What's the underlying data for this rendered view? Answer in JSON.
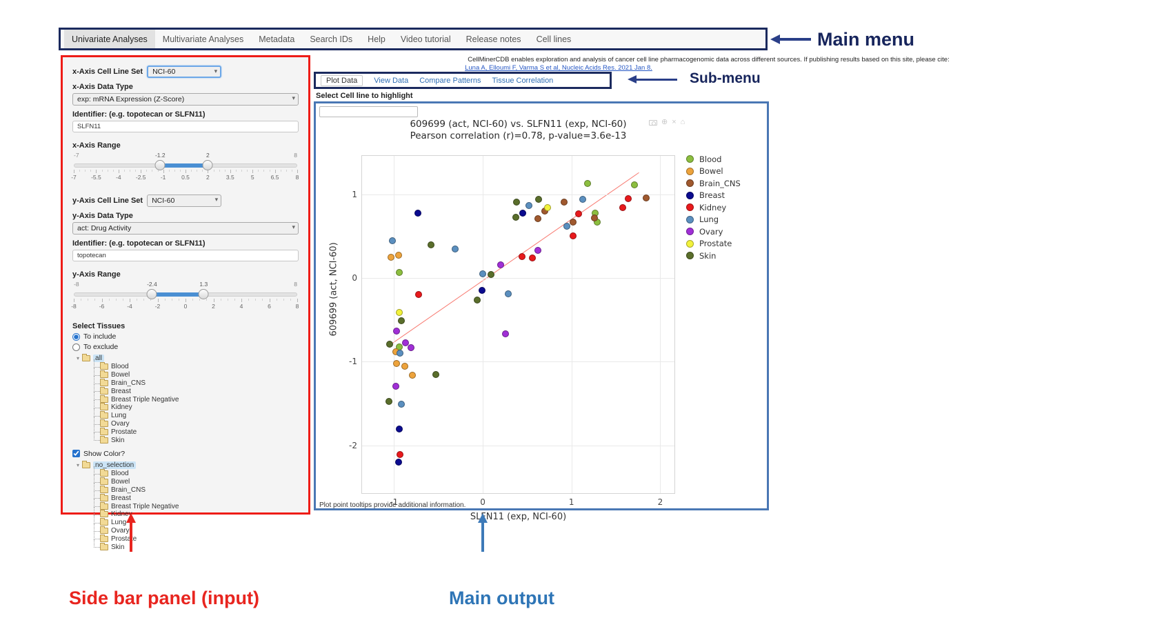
{
  "annotations": {
    "main_menu_label": "Main menu",
    "sub_menu_label": "Sub-menu",
    "sidebar_label": "Side bar panel (input)",
    "main_output_label": "Main output",
    "navy": "#17255c",
    "red": "#e8251f",
    "blue": "#2e75b6"
  },
  "main_menu": {
    "items": [
      {
        "label": "Univariate Analyses",
        "active": true
      },
      {
        "label": "Multivariate Analyses",
        "active": false
      },
      {
        "label": "Metadata",
        "active": false
      },
      {
        "label": "Search IDs",
        "active": false
      },
      {
        "label": "Help",
        "active": false
      },
      {
        "label": "Video tutorial",
        "active": false
      },
      {
        "label": "Release notes",
        "active": false
      },
      {
        "label": "Cell lines",
        "active": false
      }
    ]
  },
  "citation": {
    "text": "CellMinerCDB enables exploration and analysis of cancer cell line pharmacogenomic data across different sources. If publishing results based on this site, please cite:",
    "link": "Luna A, Elloumi F, Varma S et al, Nucleic Acids Res. 2021 Jan 8."
  },
  "submenu": {
    "tabs": [
      {
        "label": "Plot Data",
        "active": true
      },
      {
        "label": "View Data",
        "active": false
      },
      {
        "label": "Compare Patterns",
        "active": false
      },
      {
        "label": "Tissue Correlation",
        "active": false
      }
    ]
  },
  "sidebar": {
    "x_axis": {
      "cell_line_set_label": "x-Axis Cell Line Set",
      "cell_line_set_value": "NCI-60",
      "data_type_label": "x-Axis Data Type",
      "data_type_value": "exp: mRNA Expression (Z-Score)",
      "identifier_label": "Identifier: (e.g. topotecan or SLFN11)",
      "identifier_value": "SLFN11",
      "range_label": "x-Axis Range",
      "range": {
        "min": -7,
        "max": 8,
        "from": -1.2,
        "to": 2,
        "min_label": "-7",
        "max_label": "8",
        "from_label": "-1.2",
        "to_label": "2",
        "ticks": [
          "-7",
          "-5.5",
          "-4",
          "-2.5",
          "-1",
          "0.5",
          "2",
          "3.5",
          "5",
          "6.5",
          "8"
        ]
      }
    },
    "y_axis": {
      "cell_line_set_label": "y-Axis Cell Line Set",
      "cell_line_set_value": "NCI-60",
      "data_type_label": "y-Axis Data Type",
      "data_type_value": "act: Drug Activity",
      "identifier_label": "Identifier: (e.g. topotecan or SLFN11)",
      "identifier_value": "topotecan",
      "range_label": "y-Axis Range",
      "range": {
        "min": -8,
        "max": 8,
        "from": -2.4,
        "to": 1.3,
        "min_label": "-8",
        "max_label": "8",
        "from_label": "-2.4",
        "to_label": "1.3",
        "ticks": [
          "-8",
          "-6",
          "-4",
          "-2",
          "0",
          "2",
          "4",
          "6",
          "8"
        ]
      }
    },
    "select_tissues": {
      "label": "Select Tissues",
      "options": [
        "To include",
        "To exclude"
      ],
      "selected": "To include"
    },
    "include_tree": {
      "root": "all",
      "children": [
        "Blood",
        "Bowel",
        "Brain_CNS",
        "Breast",
        "Breast Triple Negative",
        "Kidney",
        "Lung",
        "Ovary",
        "Prostate",
        "Skin"
      ]
    },
    "show_color_label": "Show Color?",
    "show_color_checked": true,
    "color_tree": {
      "root": "no_selection",
      "children": [
        "Blood",
        "Bowel",
        "Brain_CNS",
        "Breast",
        "Breast Triple Negative",
        "Kidney",
        "Lung",
        "Ovary",
        "Prostate",
        "Skin"
      ]
    }
  },
  "main_output": {
    "highlight_label": "Select Cell line to highlight",
    "highlight_value": "",
    "footer": "Plot point tooltips provide additional information.",
    "modebar_icons": [
      "camera-icon",
      "zoom-icon",
      "close-icon",
      "home-icon"
    ]
  },
  "chart_data": {
    "type": "scatter",
    "title": "609699 (act, NCI-60) vs. SLFN11 (exp, NCI-60)",
    "subtitle": "Pearson correlation (r)=0.78, p-value=3.6e-13",
    "xlabel": "SLFN11 (exp, NCI-60)",
    "ylabel": "609699 (act, NCI-60)",
    "xlim": [
      -1.36,
      2.16
    ],
    "ylim": [
      -2.57,
      1.46
    ],
    "xticks": [
      -1,
      0,
      1,
      2
    ],
    "yticks": [
      -2,
      -1,
      0,
      1
    ],
    "grid": true,
    "legend_position": "right",
    "trendline": {
      "x1": -1.02,
      "y1": -0.78,
      "x2": 1.76,
      "y2": 1.26,
      "color": "#f87b72"
    },
    "series": [
      {
        "name": "Blood",
        "color": "#8cbe3f",
        "points": [
          [
            -0.94,
            0.07
          ],
          [
            1.18,
            1.13
          ],
          [
            1.71,
            1.11
          ],
          [
            1.27,
            0.78
          ],
          [
            1.29,
            0.67
          ],
          [
            -0.94,
            -0.82
          ]
        ]
      },
      {
        "name": "Bowel",
        "color": "#eda33c",
        "points": [
          [
            -1.03,
            0.25
          ],
          [
            -0.95,
            0.27
          ],
          [
            -0.98,
            -0.88
          ],
          [
            -0.97,
            -1.02
          ],
          [
            -0.88,
            -1.05
          ],
          [
            -0.79,
            -1.16
          ]
        ]
      },
      {
        "name": "Brain_CNS",
        "color": "#a0592e",
        "points": [
          [
            1.84,
            0.96
          ],
          [
            0.7,
            0.8
          ],
          [
            0.92,
            0.91
          ],
          [
            0.62,
            0.71
          ],
          [
            1.26,
            0.72
          ],
          [
            1.02,
            0.67
          ]
        ]
      },
      {
        "name": "Breast",
        "color": "#0b0b8f",
        "points": [
          [
            -0.73,
            0.78
          ],
          [
            -0.01,
            -0.15
          ],
          [
            0.45,
            0.78
          ],
          [
            -0.94,
            -1.8
          ],
          [
            -0.95,
            -2.2
          ]
        ]
      },
      {
        "name": "Kidney",
        "color": "#e8191c",
        "points": [
          [
            -0.72,
            -0.2
          ],
          [
            1.64,
            0.95
          ],
          [
            1.58,
            0.84
          ],
          [
            1.08,
            0.77
          ],
          [
            1.02,
            0.5
          ],
          [
            0.44,
            0.26
          ],
          [
            0.56,
            0.24
          ],
          [
            -0.93,
            -2.11
          ]
        ]
      },
      {
        "name": "Lung",
        "color": "#5b8fbf",
        "points": [
          [
            -1.02,
            0.45
          ],
          [
            -0.31,
            0.35
          ],
          [
            0.0,
            0.05
          ],
          [
            0.29,
            -0.19
          ],
          [
            0.52,
            0.87
          ],
          [
            1.13,
            0.94
          ],
          [
            0.95,
            0.62
          ],
          [
            -0.93,
            -0.9
          ],
          [
            -0.92,
            -1.51
          ]
        ]
      },
      {
        "name": "Ovary",
        "color": "#a02fd6",
        "points": [
          [
            0.2,
            0.16
          ],
          [
            0.26,
            -0.67
          ],
          [
            0.62,
            0.33
          ],
          [
            -0.97,
            -0.63
          ],
          [
            -0.87,
            -0.77
          ],
          [
            -0.81,
            -0.83
          ],
          [
            -0.98,
            -1.29
          ]
        ]
      },
      {
        "name": "Prostate",
        "color": "#f2f23b",
        "points": [
          [
            0.73,
            0.84
          ],
          [
            -0.94,
            -0.41
          ]
        ]
      },
      {
        "name": "Skin",
        "color": "#5a6e2b",
        "points": [
          [
            -0.58,
            0.4
          ],
          [
            0.09,
            0.04
          ],
          [
            -0.06,
            -0.26
          ],
          [
            0.38,
            0.91
          ],
          [
            0.63,
            0.94
          ],
          [
            0.37,
            0.73
          ],
          [
            -0.92,
            -0.51
          ],
          [
            -1.05,
            -0.79
          ],
          [
            -0.53,
            -1.15
          ],
          [
            -1.06,
            -1.47
          ]
        ]
      }
    ]
  }
}
